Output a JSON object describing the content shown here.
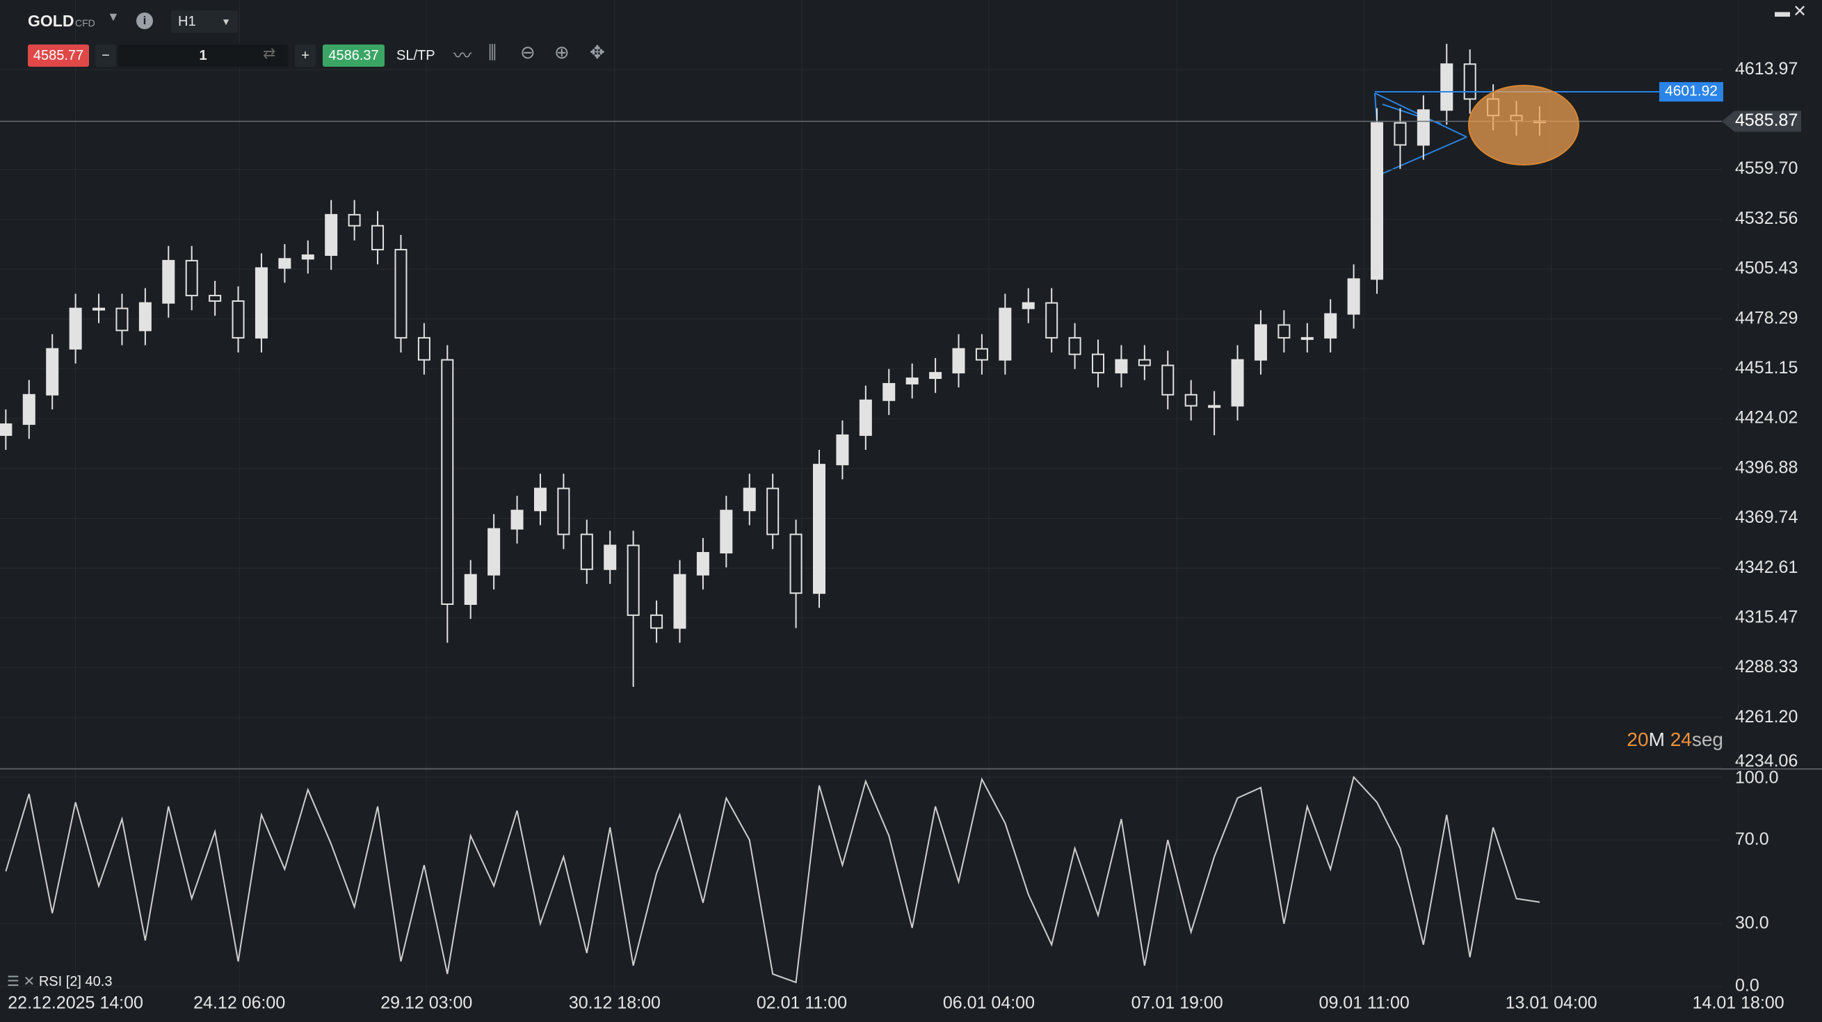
{
  "toolbar": {
    "symbol": "GOLD",
    "instrument_type": "CFD",
    "timeframe": "H1",
    "bid": 4585.77,
    "quantity": "1",
    "ask": 4586.37,
    "sl_tp": "SL/TP"
  },
  "chart_data": [
    {
      "type": "candlestick",
      "color": "#e2e2e2",
      "open": [
        4415,
        4421,
        4437,
        4462,
        4484,
        4484,
        4472,
        4487,
        4510,
        4491,
        4488,
        4468,
        4506,
        4511,
        4513,
        4535,
        4529,
        4516,
        4468,
        4456,
        4323,
        4339,
        4364,
        4374,
        4386,
        4361,
        4342,
        4355,
        4317,
        4310,
        4339,
        4351,
        4374,
        4386,
        4361,
        4329,
        4399,
        4415,
        4434,
        4443,
        4446,
        4449,
        4462,
        4456,
        4484,
        4487,
        4468,
        4459,
        4449,
        4456,
        4453,
        4437,
        4431,
        4431,
        4456,
        4475,
        4468,
        4468,
        4481,
        4500,
        4585,
        4573,
        4592,
        4617,
        4598,
        4589,
        4586
      ],
      "high": [
        4429,
        4445,
        4470,
        4492,
        4492,
        4492,
        4495,
        4518,
        4518,
        4499,
        4496,
        4514,
        4519,
        4521,
        4543,
        4543,
        4537,
        4524,
        4476,
        4464,
        4347,
        4372,
        4382,
        4394,
        4394,
        4369,
        4363,
        4363,
        4325,
        4347,
        4359,
        4382,
        4394,
        4394,
        4369,
        4407,
        4423,
        4442,
        4451,
        4454,
        4457,
        4470,
        4470,
        4492,
        4495,
        4495,
        4476,
        4467,
        4464,
        4464,
        4461,
        4445,
        4439,
        4464,
        4483,
        4483,
        4476,
        4489,
        4508,
        4593,
        4593,
        4600,
        4628,
        4625,
        4606,
        4597,
        4594
      ],
      "low": [
        4407,
        4413,
        4429,
        4454,
        4476,
        4464,
        4464,
        4479,
        4483,
        4480,
        4460,
        4460,
        4498,
        4503,
        4505,
        4521,
        4508,
        4460,
        4448,
        4302,
        4315,
        4331,
        4356,
        4366,
        4353,
        4334,
        4334,
        4278,
        4302,
        4302,
        4331,
        4343,
        4366,
        4353,
        4310,
        4321,
        4391,
        4407,
        4426,
        4435,
        4438,
        4441,
        4448,
        4448,
        4476,
        4460,
        4451,
        4441,
        4441,
        4445,
        4429,
        4423,
        4415,
        4423,
        4448,
        4460,
        4460,
        4460,
        4473,
        4492,
        4560,
        4565,
        4584,
        4590,
        4581,
        4578,
        4578
      ],
      "close": [
        4421,
        4437,
        4462,
        4484,
        4484,
        4472,
        4487,
        4510,
        4491,
        4488,
        4468,
        4506,
        4511,
        4513,
        4535,
        4529,
        4516,
        4468,
        4456,
        4323,
        4339,
        4364,
        4374,
        4386,
        4361,
        4342,
        4355,
        4317,
        4310,
        4339,
        4351,
        4374,
        4386,
        4361,
        4329,
        4399,
        4415,
        4434,
        4443,
        4446,
        4449,
        4462,
        4456,
        4484,
        4487,
        4468,
        4459,
        4449,
        4456,
        4453,
        4437,
        4431,
        4431,
        4456,
        4475,
        4468,
        4468,
        4481,
        4500,
        4585,
        4573,
        4592,
        4617,
        4598,
        4589,
        4586,
        4585.87
      ],
      "ylim": [
        4233.3,
        4651.9
      ],
      "yticks": [
        4613.97,
        {
          "value": 4559.7,
          "label": "4559.70"
        },
        4532.56,
        4505.43,
        4478.29,
        4451.15,
        4424.02,
        4396.88,
        4369.74,
        4342.61,
        4315.47,
        4288.33,
        {
          "value": 4261.2,
          "label": "4261.20"
        },
        4234.06
      ],
      "xlim": [
        -0.25,
        78.15
      ],
      "xticks": [
        {
          "value": 3,
          "label": "22.12.2025 14:00"
        },
        {
          "value": 10.05,
          "label": "24.12 06:00"
        },
        {
          "value": 18.1,
          "label": "29.12 03:00"
        },
        {
          "value": 26.2,
          "label": "30.12 18:00"
        },
        {
          "value": 34.25,
          "label": "02.01 11:00"
        },
        {
          "value": 42.3,
          "label": "06.01 04:00"
        },
        {
          "value": 50.4,
          "label": "07.01 19:00"
        },
        {
          "value": 58.45,
          "label": "09.01 11:00"
        },
        {
          "value": 66.5,
          "label": "13.01 04:00"
        },
        {
          "value": 74.55,
          "label": "14.01 18:00"
        }
      ],
      "grid": true,
      "current_price": 4585.87,
      "horizontal_line": {
        "value": 4601.92,
        "color": "#2b84e8"
      },
      "countdown": {
        "minutes": "20",
        "minutes_unit": "M",
        "seconds": "24",
        "seconds_unit": "seg"
      }
    },
    {
      "type": "line",
      "name": "RSI [2]",
      "color": "#cfcfcf",
      "values": [
        55,
        92,
        35,
        88,
        48,
        80,
        22,
        86,
        42,
        74,
        12,
        82,
        56,
        94,
        68,
        38,
        86,
        12,
        58,
        6,
        72,
        48,
        84,
        30,
        62,
        16,
        76,
        10,
        54,
        82,
        40,
        90,
        70,
        6,
        2,
        96,
        58,
        98,
        72,
        28,
        86,
        50,
        99,
        78,
        44,
        20,
        66,
        34,
        80,
        10,
        70,
        26,
        62,
        90,
        95,
        30,
        86,
        56,
        100,
        88,
        66,
        20,
        82,
        14,
        76,
        42,
        40.3
      ],
      "ylim": [
        -3.3,
        103.9
      ],
      "yticks": [
        {
          "value": 0,
          "label": "0.0"
        },
        {
          "value": 30,
          "label": "30.0"
        },
        {
          "value": 70,
          "label": "70.0"
        },
        {
          "value": 100,
          "label": "100.0"
        }
      ],
      "xlim": [
        -0.25,
        78.15
      ],
      "grid": true
    }
  ]
}
